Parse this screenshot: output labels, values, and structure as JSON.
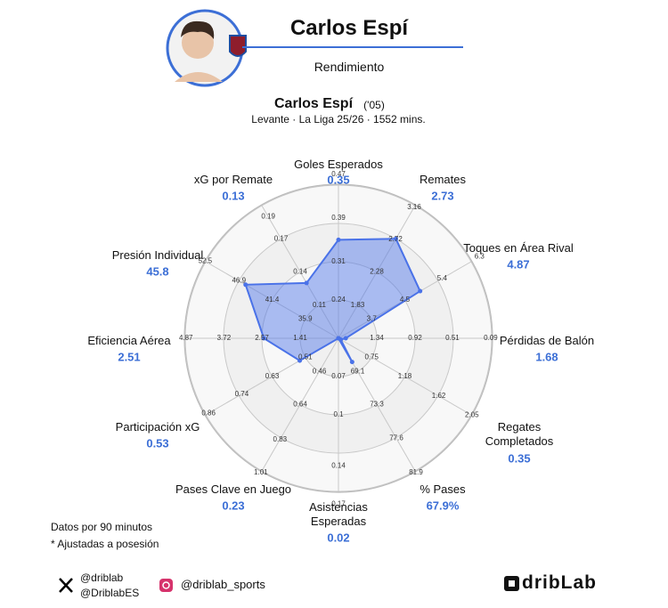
{
  "header": {
    "title": "Carlos Espí",
    "subtitle": "Rendimiento"
  },
  "chart_data": {
    "type": "radar",
    "title": "Carlos Espí",
    "title_note": "('05)",
    "subtitle": "Levante · La Liga 25/26 · 1552 mins.",
    "categories": [
      "Goles Esperados",
      "Remates",
      "Toques en Área Rival",
      "Pérdidas de Balón",
      "Regates Completados",
      "% Pases",
      "Asistencias Esperadas",
      "Pases Clave en Juego",
      "Participación xG",
      "Eficiencia Aérea",
      "Presión Individual",
      "xG por Remate"
    ],
    "values": [
      0.35,
      2.73,
      4.87,
      1.68,
      0.35,
      67.9,
      0.02,
      0.23,
      0.53,
      2.51,
      45.8,
      0.13
    ],
    "value_labels": [
      "0.35",
      "2.73",
      "4.87",
      "1.68",
      "0.35",
      "67.9%",
      "0.02",
      "0.23",
      "0.53",
      "2.51",
      "45.8",
      "0.13"
    ],
    "axis_ticks": [
      [
        0.24,
        0.31,
        0.39,
        0.47
      ],
      [
        1.83,
        2.28,
        2.72,
        3.16
      ],
      [
        3.7,
        4.5,
        5.4,
        6.3
      ],
      [
        1.34,
        0.92,
        0.51,
        0.09
      ],
      [
        0.75,
        1.18,
        1.62,
        2.05
      ],
      [
        69.1,
        73.3,
        77.6,
        81.9
      ],
      [
        0.07,
        0.1,
        0.14,
        0.17
      ],
      [
        0.46,
        0.64,
        0.83,
        1.01
      ],
      [
        0.51,
        0.63,
        0.74,
        0.86
      ],
      [
        1.41,
        2.57,
        3.72,
        4.87
      ],
      [
        35.9,
        41.4,
        46.9,
        52.5
      ],
      [
        0.11,
        0.14,
        0.17,
        0.19
      ]
    ],
    "color": "#4a72e8"
  },
  "notes": [
    "Datos por 90 minutos",
    "* Ajustadas a posesión"
  ],
  "social": {
    "x": [
      "@driblab",
      "@DriblabES"
    ],
    "instagram": "@driblab_sports"
  },
  "brand": "dribLab"
}
